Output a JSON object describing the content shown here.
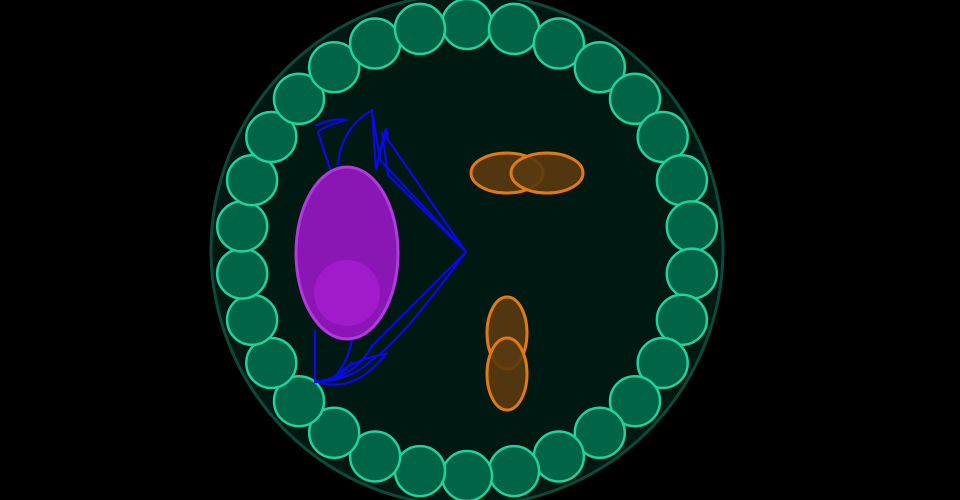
{
  "colors": {
    "background": "#000000",
    "disc_fill": "#001812",
    "disc_stroke": "#0b4a3a",
    "ring_cell_fill": "#006446",
    "ring_cell_stroke": "#1fd39a",
    "nucleus_fill": "#8a16b4",
    "nucleus_stroke": "#b13ae0",
    "nucleolus_fill": "#a21ccc",
    "spindle_stroke": "#0a0ae6",
    "organelle_fill": "#5a3a10",
    "organelle_stroke": "#e07a14"
  },
  "icons": {
    "ring_cell": "circle",
    "nucleus": "ellipse",
    "organelle": "ellipse"
  },
  "diagram": {
    "ring_cell_count": 30,
    "organelle_pairs": [
      {
        "orientation": "horizontal"
      },
      {
        "orientation": "vertical"
      }
    ]
  }
}
